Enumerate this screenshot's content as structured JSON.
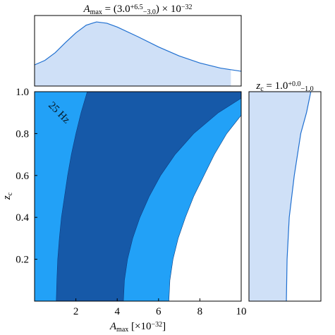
{
  "chart_data": [
    {
      "type": "density",
      "title": {
        "symbol": "A",
        "symbol_sub": "max",
        "eq": " = (",
        "value": "3.0",
        "plus": "+6.5",
        "minus": "−3.0",
        "scale": ") × 10",
        "exponent": "−32"
      },
      "x": [
        0,
        0.5,
        1,
        1.5,
        2,
        2.5,
        3,
        3.5,
        4,
        5,
        6,
        7,
        8,
        9,
        10
      ],
      "values": [
        0.33,
        0.4,
        0.52,
        0.68,
        0.83,
        0.95,
        1.0,
        0.98,
        0.92,
        0.77,
        0.61,
        0.47,
        0.36,
        0.28,
        0.23
      ],
      "xlim": [
        0,
        10
      ],
      "ylim": [
        0,
        1.1
      ],
      "shade_range": [
        0,
        9.5
      ],
      "color": "#1f6fd0",
      "fill": "#cfe0f7"
    },
    {
      "type": "contour",
      "xlabel": {
        "symbol": "A",
        "symbol_sub": "max",
        "unit": " [×10",
        "exponent": "−32",
        "close": "]"
      },
      "ylabel": {
        "symbol": "z",
        "symbol_sub": "c"
      },
      "xlim": [
        0,
        10
      ],
      "ylim": [
        0,
        1.0
      ],
      "xticks": [
        2,
        4,
        6,
        8,
        10
      ],
      "yticks": [
        0.2,
        0.4,
        0.6,
        0.8,
        {
          "value": 1.0,
          "label": "1.0"
        }
      ],
      "z": [
        0,
        0.1,
        0.2,
        0.3,
        0.4,
        0.5,
        0.6,
        0.7,
        0.8,
        0.9,
        1.0
      ],
      "levels": [
        {
          "color": "#22a1f7",
          "right": [
            6.5,
            6.55,
            6.7,
            6.95,
            7.3,
            7.7,
            8.2,
            8.7,
            9.3,
            10.1,
            11
          ]
        },
        {
          "color": "#1659a8",
          "left": [
            1.05,
            1.08,
            1.12,
            1.2,
            1.3,
            1.45,
            1.6,
            1.78,
            2.0,
            2.25,
            2.55
          ],
          "right": [
            4.3,
            4.35,
            4.5,
            4.75,
            5.1,
            5.55,
            6.1,
            6.8,
            7.7,
            8.9,
            10.5
          ]
        }
      ],
      "watermark": "25 Hz"
    },
    {
      "type": "density-vertical",
      "title": {
        "symbol": "z",
        "symbol_sub": "c",
        "eq": " = ",
        "value": "1.0",
        "plus": "+0.0",
        "minus": "−1.0"
      },
      "z": [
        0,
        0.2,
        0.4,
        0.6,
        0.8,
        0.9,
        1.0
      ],
      "values": [
        0.52,
        0.53,
        0.56,
        0.63,
        0.72,
        0.8,
        0.86
      ],
      "xlim": [
        0,
        1
      ],
      "ylim": [
        0,
        1.0
      ],
      "color": "#1f6fd0",
      "fill": "#cfe0f7"
    }
  ]
}
